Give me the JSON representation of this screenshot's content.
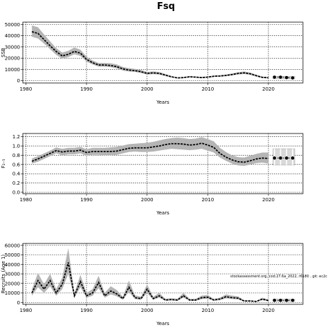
{
  "title": "Fsq",
  "note": "stockassessment.org, cod.27.6a_2022, r6180 , git: ec2c",
  "chart_data": [
    {
      "type": "line",
      "ylabel": "SSB",
      "xlabel": "Years",
      "xlim": [
        1979.5,
        2025.7
      ],
      "ylim": [
        -2000,
        52000
      ],
      "xticks": [
        1980,
        1990,
        2000,
        2010,
        2020
      ],
      "yticks": [
        0,
        10000,
        20000,
        30000,
        40000,
        50000
      ],
      "grid": true,
      "x": [
        1981,
        1982,
        1983,
        1984,
        1985,
        1986,
        1987,
        1988,
        1989,
        1990,
        1991,
        1992,
        1993,
        1994,
        1995,
        1996,
        1997,
        1998,
        1999,
        2000,
        2001,
        2002,
        2003,
        2004,
        2005,
        2006,
        2007,
        2008,
        2009,
        2010,
        2011,
        2012,
        2013,
        2014,
        2015,
        2016,
        2017,
        2018,
        2019,
        2020
      ],
      "estimate": [
        43500,
        42000,
        36500,
        31000,
        26000,
        22000,
        23500,
        26000,
        24500,
        19000,
        16000,
        14000,
        14000,
        13500,
        12500,
        10500,
        9500,
        9000,
        8000,
        6500,
        7000,
        6500,
        5000,
        3500,
        2500,
        2800,
        3500,
        3200,
        2800,
        3200,
        4000,
        4200,
        4700,
        5500,
        6500,
        7000,
        6200,
        4500,
        3000,
        2700
      ],
      "lower": [
        39000,
        37500,
        33000,
        28000,
        23000,
        19500,
        21000,
        23500,
        22000,
        17000,
        14500,
        12500,
        12500,
        12000,
        11000,
        9000,
        8200,
        7800,
        6800,
        5500,
        5800,
        5500,
        4200,
        3000,
        2100,
        2300,
        3000,
        2700,
        2300,
        2700,
        3400,
        3600,
        4000,
        4700,
        5500,
        6000,
        5200,
        3700,
        2400,
        2100
      ],
      "upper": [
        49000,
        47500,
        41000,
        35000,
        29000,
        25000,
        26500,
        29500,
        27500,
        21500,
        18000,
        15800,
        15800,
        15500,
        14500,
        12300,
        11100,
        10500,
        9500,
        7800,
        8300,
        7800,
        6000,
        4300,
        3000,
        3400,
        4200,
        3800,
        3400,
        3800,
        4700,
        4900,
        5500,
        6400,
        7500,
        8200,
        7200,
        5400,
        3700,
        3300
      ],
      "forecast_x": [
        2021,
        2022,
        2023,
        2024
      ],
      "forecast": [
        3200,
        3200,
        2800,
        2500
      ],
      "forecast_lower": [
        2400,
        2300,
        2000,
        1700
      ],
      "forecast_upper": [
        4000,
        4000,
        3600,
        3300
      ]
    },
    {
      "type": "line",
      "ylabel": "F₂₋₅",
      "xlabel": "Years",
      "xlim": [
        1979.5,
        2025.7
      ],
      "ylim": [
        -0.03,
        1.27
      ],
      "xticks": [
        1980,
        1990,
        2000,
        2010,
        2020
      ],
      "yticks": [
        0.0,
        0.2,
        0.4,
        0.6,
        0.8,
        1.0,
        1.2
      ],
      "grid": true,
      "x": [
        1981,
        1982,
        1983,
        1984,
        1985,
        1986,
        1987,
        1988,
        1989,
        1990,
        1991,
        1992,
        1993,
        1994,
        1995,
        1996,
        1997,
        1998,
        1999,
        2000,
        2001,
        2002,
        2003,
        2004,
        2005,
        2006,
        2007,
        2008,
        2009,
        2010,
        2011,
        2012,
        2013,
        2014,
        2015,
        2016,
        2017,
        2018,
        2019,
        2020
      ],
      "estimate": [
        0.67,
        0.72,
        0.78,
        0.84,
        0.9,
        0.87,
        0.89,
        0.89,
        0.91,
        0.86,
        0.88,
        0.88,
        0.88,
        0.88,
        0.89,
        0.92,
        0.95,
        0.96,
        0.96,
        0.96,
        0.98,
        1.0,
        1.03,
        1.05,
        1.05,
        1.04,
        1.02,
        1.03,
        1.06,
        1.02,
        0.97,
        0.84,
        0.76,
        0.7,
        0.66,
        0.65,
        0.68,
        0.72,
        0.74,
        0.73
      ],
      "lower": [
        0.62,
        0.66,
        0.72,
        0.78,
        0.84,
        0.8,
        0.82,
        0.82,
        0.84,
        0.79,
        0.81,
        0.81,
        0.8,
        0.8,
        0.81,
        0.84,
        0.87,
        0.88,
        0.87,
        0.87,
        0.88,
        0.9,
        0.92,
        0.94,
        0.93,
        0.92,
        0.91,
        0.92,
        0.94,
        0.9,
        0.86,
        0.75,
        0.68,
        0.62,
        0.58,
        0.57,
        0.6,
        0.63,
        0.64,
        0.62
      ],
      "upper": [
        0.73,
        0.78,
        0.84,
        0.9,
        0.97,
        0.94,
        0.96,
        0.96,
        0.98,
        0.93,
        0.96,
        0.96,
        0.96,
        0.97,
        0.98,
        1.01,
        1.04,
        1.05,
        1.06,
        1.07,
        1.09,
        1.12,
        1.15,
        1.17,
        1.18,
        1.17,
        1.15,
        1.16,
        1.19,
        1.15,
        1.1,
        0.96,
        0.87,
        0.8,
        0.76,
        0.75,
        0.79,
        0.83,
        0.86,
        0.86
      ],
      "forecast_x": [
        2021,
        2022,
        2023,
        2024
      ],
      "forecast": [
        0.74,
        0.74,
        0.74,
        0.74
      ],
      "forecast_lower": [
        0.59,
        0.59,
        0.59,
        0.59
      ],
      "forecast_upper": [
        0.94,
        0.94,
        0.94,
        0.94
      ]
    },
    {
      "type": "line",
      "ylabel": "Recruits (Age 1)",
      "xlabel": "Years",
      "xlim": [
        1979.5,
        2025.7
      ],
      "ylim": [
        -2000,
        62000
      ],
      "xticks": [
        1980,
        1990,
        2000,
        2010,
        2020
      ],
      "yticks": [
        0,
        10000,
        20000,
        30000,
        40000,
        50000,
        60000
      ],
      "grid": true,
      "x": [
        1981,
        1982,
        1983,
        1984,
        1985,
        1986,
        1987,
        1988,
        1989,
        1990,
        1991,
        1992,
        1993,
        1994,
        1995,
        1996,
        1997,
        1998,
        1999,
        2000,
        2001,
        2002,
        2003,
        2004,
        2005,
        2006,
        2007,
        2008,
        2009,
        2010,
        2011,
        2012,
        2013,
        2014,
        2015,
        2016,
        2017,
        2018,
        2019,
        2020
      ],
      "estimate": [
        10000,
        23000,
        14000,
        23000,
        10000,
        19000,
        42000,
        7000,
        22000,
        7000,
        10000,
        21000,
        7000,
        12000,
        9000,
        4000,
        16000,
        5000,
        4000,
        14000,
        4000,
        7000,
        2500,
        3000,
        2500,
        7000,
        2500,
        2500,
        5000,
        5500,
        2500,
        3500,
        6000,
        5000,
        4500,
        1500,
        1500,
        1000,
        3500,
        2000
      ],
      "lower": [
        7000,
        16000,
        10000,
        17000,
        7000,
        14000,
        30000,
        5000,
        16000,
        5000,
        7000,
        15000,
        5000,
        8500,
        6500,
        2800,
        11000,
        3500,
        2800,
        10000,
        2800,
        5000,
        1700,
        2100,
        1700,
        5000,
        1700,
        1700,
        3500,
        3900,
        1700,
        2500,
        4300,
        3600,
        3200,
        1000,
        1000,
        700,
        2400,
        1300
      ],
      "upper": [
        14000,
        31000,
        19000,
        30000,
        14000,
        26000,
        57000,
        10000,
        29000,
        10000,
        14000,
        28000,
        10000,
        17000,
        13000,
        6000,
        23000,
        7500,
        6000,
        19000,
        6000,
        10000,
        3800,
        4500,
        3800,
        10000,
        3800,
        3800,
        7200,
        7800,
        3700,
        5000,
        8500,
        7200,
        6500,
        2200,
        2200,
        1500,
        5000,
        3000
      ],
      "forecast_x": [
        2021,
        2022,
        2023,
        2024
      ],
      "forecast": [
        2200,
        2200,
        2200,
        2200
      ],
      "forecast_lower": [
        1200,
        1200,
        1200,
        1200
      ],
      "forecast_upper": [
        3600,
        3600,
        3600,
        3600
      ]
    }
  ]
}
